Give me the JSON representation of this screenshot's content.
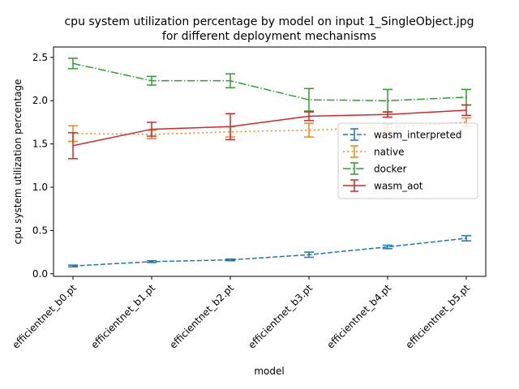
{
  "chart_data": {
    "type": "line",
    "title": "cpu system utilization percentage by model on input 1_SingleObject.jpg\nfor different deployment mechanisms",
    "xlabel": "model",
    "ylabel": "cpu system utilization percentage",
    "categories": [
      "efficientnet_b0.pt",
      "efficientnet_b1.pt",
      "efficientnet_b2.pt",
      "efficientnet_b3.pt",
      "efficientnet_b4.pt",
      "efficientnet_b5.pt"
    ],
    "ylim": [
      -0.03,
      2.62
    ],
    "yticks": [
      "0.0",
      "0.5",
      "1.0",
      "1.5",
      "2.0",
      "2.5"
    ],
    "ytick_values": [
      0,
      0.5,
      1.0,
      1.5,
      2.0,
      2.5
    ],
    "grid": false,
    "legend_position": "center-right",
    "series": [
      {
        "name": "wasm_interpreted",
        "color": "#1f77b4",
        "dash": "dashed",
        "values": [
          0.09,
          0.14,
          0.16,
          0.22,
          0.31,
          0.41
        ],
        "errors": [
          0.01,
          0.01,
          0.01,
          0.03,
          0.02,
          0.03
        ]
      },
      {
        "name": "native",
        "color": "#ff7f0e",
        "dash": "dotted",
        "values": [
          1.62,
          1.61,
          1.64,
          1.66,
          1.69,
          1.75
        ],
        "errors": [
          0.09,
          0.05,
          0.06,
          0.08,
          0.04,
          0.05
        ]
      },
      {
        "name": "docker",
        "color": "#2ca02c",
        "dash": "dashdot",
        "values": [
          2.43,
          2.23,
          2.23,
          2.01,
          2.0,
          2.04
        ],
        "errors": [
          0.06,
          0.05,
          0.08,
          0.13,
          0.13,
          0.09
        ]
      },
      {
        "name": "wasm_aot",
        "color": "#d62728",
        "dash": "solid",
        "values": [
          1.48,
          1.67,
          1.7,
          1.82,
          1.84,
          1.89
        ],
        "errors": [
          0.15,
          0.08,
          0.15,
          0.05,
          0.03,
          0.06
        ]
      }
    ]
  }
}
